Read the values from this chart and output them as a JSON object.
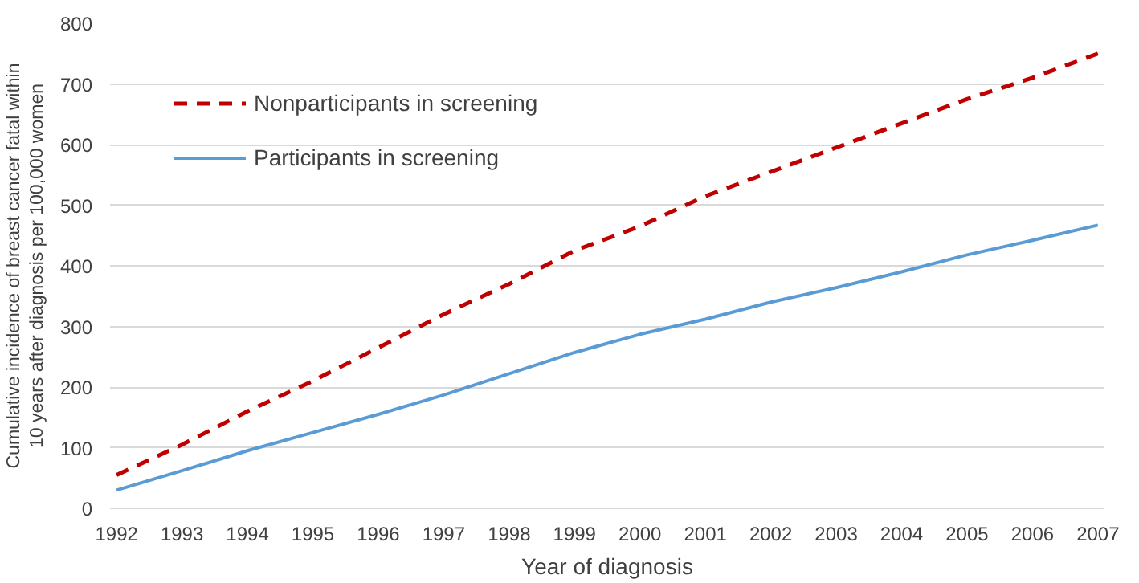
{
  "chart_data": {
    "type": "line",
    "xlabel": "Year of diagnosis",
    "ylabel": "Cumulative incidence of breast cancer fatal within 10 years after diagnosis per 100,000 women",
    "categories": [
      "1992",
      "1993",
      "1994",
      "1995",
      "1996",
      "1997",
      "1998",
      "1999",
      "2000",
      "2001",
      "2002",
      "2003",
      "2004",
      "2005",
      "2006",
      "2007"
    ],
    "series": [
      {
        "name": "Nonparticipants in screening",
        "color": "#c00000",
        "line_style": "dashed",
        "values": [
          55,
          105,
          160,
          210,
          265,
          320,
          370,
          425,
          465,
          515,
          555,
          595,
          635,
          675,
          710,
          750
        ]
      },
      {
        "name": "Participants in screening",
        "color": "#5b9bd5",
        "line_style": "solid",
        "values": [
          30,
          62,
          95,
          125,
          155,
          187,
          222,
          257,
          287,
          312,
          340,
          364,
          390,
          418,
          442,
          467
        ]
      }
    ],
    "ylim": [
      0,
      800
    ],
    "yticks": [
      0,
      100,
      200,
      300,
      400,
      500,
      600,
      700,
      800
    ],
    "grid": "y",
    "legend": "top left",
    "marker": "none"
  }
}
